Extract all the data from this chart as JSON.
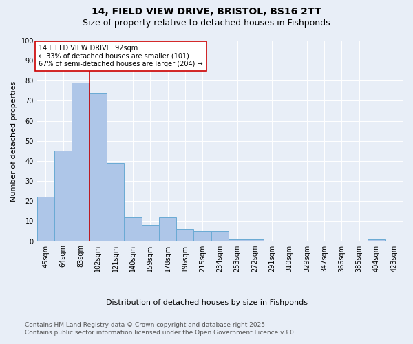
{
  "title1": "14, FIELD VIEW DRIVE, BRISTOL, BS16 2TT",
  "title2": "Size of property relative to detached houses in Fishponds",
  "xlabel": "Distribution of detached houses by size in Fishponds",
  "ylabel": "Number of detached properties",
  "categories": [
    "45sqm",
    "64sqm",
    "83sqm",
    "102sqm",
    "121sqm",
    "140sqm",
    "159sqm",
    "178sqm",
    "196sqm",
    "215sqm",
    "234sqm",
    "253sqm",
    "272sqm",
    "291sqm",
    "310sqm",
    "329sqm",
    "347sqm",
    "366sqm",
    "385sqm",
    "404sqm",
    "423sqm"
  ],
  "values": [
    22,
    45,
    79,
    74,
    39,
    12,
    8,
    12,
    6,
    5,
    5,
    1,
    1,
    0,
    0,
    0,
    0,
    0,
    0,
    1,
    0
  ],
  "bar_color": "#aec6e8",
  "bar_edge_color": "#6aaad4",
  "red_line_index": 2,
  "annotation_text": "14 FIELD VIEW DRIVE: 92sqm\n← 33% of detached houses are smaller (101)\n67% of semi-detached houses are larger (204) →",
  "annotation_box_facecolor": "#ffffff",
  "annotation_box_edgecolor": "#cc0000",
  "red_line_color": "#cc0000",
  "ylim": [
    0,
    100
  ],
  "yticks": [
    0,
    10,
    20,
    30,
    40,
    50,
    60,
    70,
    80,
    90,
    100
  ],
  "bg_color": "#e8eef7",
  "footnote1": "Contains HM Land Registry data © Crown copyright and database right 2025.",
  "footnote2": "Contains public sector information licensed under the Open Government Licence v3.0.",
  "title_fontsize": 10,
  "subtitle_fontsize": 9,
  "axis_label_fontsize": 8,
  "tick_fontsize": 7,
  "annotation_fontsize": 7,
  "footnote_fontsize": 6.5
}
